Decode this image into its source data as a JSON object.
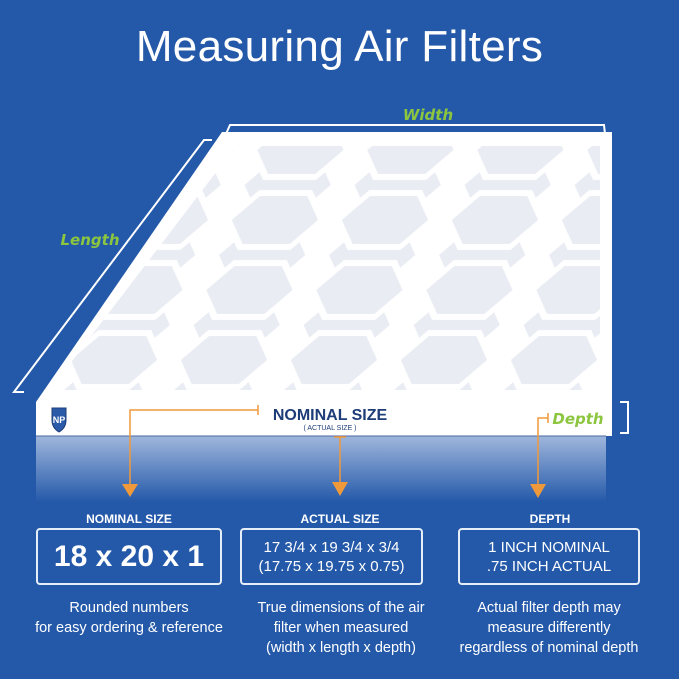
{
  "title": "Measuring Air Filters",
  "diagram": {
    "width_label": "Width",
    "length_label": "Length",
    "depth_label": "Depth",
    "nominal_label": "NOMINAL SIZE",
    "actual_sublabel": "( ACTUAL SIZE )",
    "logo_text": "NP",
    "colors": {
      "background": "#2459a9",
      "arrow": "#f0993a",
      "label_green": "#8cc63f",
      "navy": "#1d3c78"
    }
  },
  "columns": [
    {
      "label": "NOMINAL SIZE",
      "value_lines": [
        "18 x 20 x 1"
      ],
      "description_lines": [
        "Rounded numbers",
        "for easy ordering & reference"
      ]
    },
    {
      "label": "ACTUAL SIZE",
      "value_lines": [
        "17 3/4 x 19 3/4 x 3/4",
        "(17.75 x 19.75 x 0.75)"
      ],
      "description_lines": [
        "True dimensions of the air",
        "filter when measured",
        "(width x length x depth)"
      ]
    },
    {
      "label": "DEPTH",
      "value_lines": [
        "1 INCH NOMINAL",
        ".75 INCH ACTUAL"
      ],
      "description_lines": [
        "Actual filter depth may",
        "measure differently",
        "regardless of nominal depth"
      ]
    }
  ]
}
